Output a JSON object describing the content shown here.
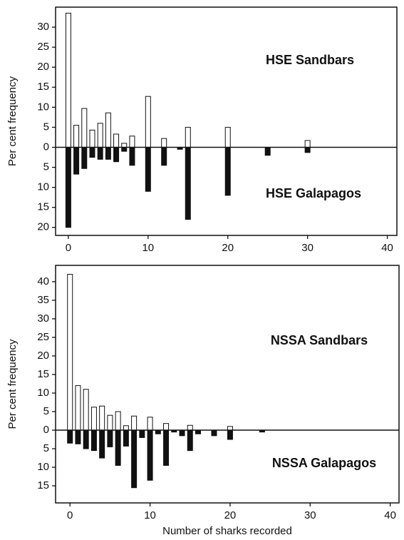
{
  "chart_data": [
    {
      "type": "bar",
      "ylabel": "Per cent frequency",
      "x": [
        0,
        1,
        2,
        3,
        4,
        5,
        6,
        7,
        8,
        10,
        12,
        14,
        15,
        20,
        25,
        30
      ],
      "series": [
        {
          "name": "HSE Sandbars",
          "color": "#ffffff",
          "values": [
            33.5,
            5.5,
            9.7,
            4.3,
            6,
            8.6,
            3.3,
            1,
            2.8,
            12.7,
            2.2,
            null,
            5,
            5,
            null,
            1.7
          ]
        },
        {
          "name": "HSE Galapagos",
          "color": "#111111",
          "values": [
            -20,
            -6.7,
            -5.3,
            -2.5,
            -3,
            -3,
            -3.6,
            -1,
            -4.5,
            -11,
            -4.5,
            -0.5,
            -18,
            -12,
            -2,
            -1.3
          ]
        }
      ],
      "xlim": [
        -1.6,
        41.2
      ],
      "ylim": [
        -22,
        35
      ],
      "xticks": [
        0,
        10,
        20,
        30,
        40
      ],
      "yticks": [
        {
          "value": -20,
          "label": "20"
        },
        {
          "value": -15,
          "label": "15"
        },
        {
          "value": -10,
          "label": "10"
        },
        {
          "value": -5,
          "label": "5"
        },
        0,
        5,
        10,
        15,
        20,
        25,
        30
      ]
    },
    {
      "type": "bar",
      "ylabel": "Per cent frequency",
      "xlabel": "Number of sharks recorded",
      "x": [
        0,
        1,
        2,
        3,
        4,
        5,
        6,
        7,
        8,
        9,
        10,
        11,
        12,
        13,
        14,
        15,
        16,
        18,
        20,
        24
      ],
      "series": [
        {
          "name": "NSSA Sandbars",
          "color": "#ffffff",
          "values": [
            42,
            12,
            11,
            6.2,
            6.5,
            4,
            5,
            1.2,
            3.8,
            null,
            3.5,
            null,
            1.8,
            null,
            null,
            1.3,
            null,
            null,
            1,
            null
          ]
        },
        {
          "name": "NSSA Galapagos",
          "color": "#111111",
          "values": [
            -3.5,
            -3.7,
            -5,
            -5.5,
            -7.5,
            -4.5,
            -9.5,
            -4.3,
            -15.5,
            -2,
            -13.5,
            -1,
            -9.5,
            -0.5,
            -1.5,
            -5.5,
            -1,
            -1.5,
            -2.5,
            -0.5
          ]
        }
      ],
      "xlim": [
        -1.8,
        41.1
      ],
      "ylim": [
        -19.6,
        44.4
      ],
      "xticks": [
        0,
        10,
        20,
        30,
        40
      ],
      "yticks": [
        {
          "value": -15,
          "label": "15"
        },
        {
          "value": -10,
          "label": "10"
        },
        {
          "value": -5,
          "label": "5"
        },
        0,
        5,
        10,
        15,
        20,
        25,
        30,
        35,
        40
      ]
    }
  ]
}
